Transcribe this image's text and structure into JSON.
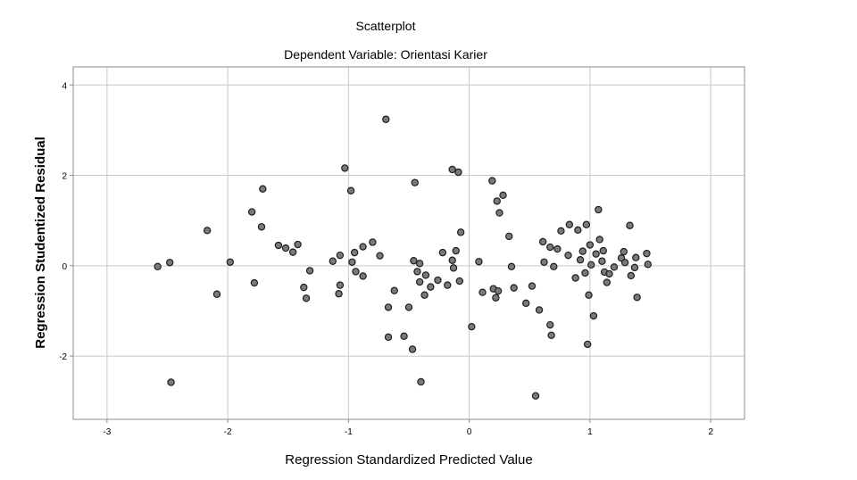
{
  "chart_data": {
    "type": "scatter",
    "title": "Scatterplot",
    "subtitle": "Dependent Variable: Orientasi Karier",
    "xlabel": "Regression Standardized Predicted Value",
    "ylabel": "Regression Studentized Residual",
    "xlim": [
      -3.28,
      2.28
    ],
    "ylim": [
      -3.4,
      4.4
    ],
    "xticks": [
      -3,
      -2,
      -1,
      0,
      1,
      2
    ],
    "yticks": [
      -2,
      0,
      2,
      4
    ],
    "grid": true,
    "point_color": "#7a7a7a",
    "points": [
      [
        -2.58,
        -0.02
      ],
      [
        -2.48,
        0.07
      ],
      [
        -2.47,
        -2.58
      ],
      [
        -2.17,
        0.78
      ],
      [
        -2.09,
        -0.63
      ],
      [
        -1.98,
        0.08
      ],
      [
        -1.8,
        1.19
      ],
      [
        -1.78,
        -0.38
      ],
      [
        -1.72,
        0.86
      ],
      [
        -1.71,
        1.7
      ],
      [
        -1.58,
        0.45
      ],
      [
        -1.52,
        0.39
      ],
      [
        -1.46,
        0.3
      ],
      [
        -1.42,
        0.47
      ],
      [
        -1.37,
        -0.48
      ],
      [
        -1.35,
        -0.72
      ],
      [
        -1.32,
        -0.11
      ],
      [
        -1.13,
        0.1
      ],
      [
        -1.08,
        -0.62
      ],
      [
        -1.07,
        0.23
      ],
      [
        -1.07,
        -0.43
      ],
      [
        -1.03,
        2.16
      ],
      [
        -0.98,
        1.66
      ],
      [
        -0.97,
        0.08
      ],
      [
        -0.95,
        0.29
      ],
      [
        -0.94,
        -0.13
      ],
      [
        -0.88,
        0.42
      ],
      [
        -0.88,
        -0.23
      ],
      [
        -0.8,
        0.52
      ],
      [
        -0.74,
        0.22
      ],
      [
        -0.69,
        3.24
      ],
      [
        -0.67,
        -0.92
      ],
      [
        -0.67,
        -1.58
      ],
      [
        -0.62,
        -0.55
      ],
      [
        -0.54,
        -1.56
      ],
      [
        -0.5,
        -0.92
      ],
      [
        -0.47,
        -1.85
      ],
      [
        -0.46,
        0.11
      ],
      [
        -0.45,
        1.84
      ],
      [
        -0.43,
        -0.13
      ],
      [
        -0.41,
        0.05
      ],
      [
        -0.41,
        -0.36
      ],
      [
        -0.4,
        -2.57
      ],
      [
        -0.37,
        -0.65
      ],
      [
        -0.36,
        -0.21
      ],
      [
        -0.32,
        -0.47
      ],
      [
        -0.26,
        -0.32
      ],
      [
        -0.22,
        0.29
      ],
      [
        -0.18,
        -0.43
      ],
      [
        -0.14,
        0.12
      ],
      [
        -0.14,
        2.13
      ],
      [
        -0.13,
        -0.05
      ],
      [
        -0.11,
        0.33
      ],
      [
        -0.09,
        2.07
      ],
      [
        -0.08,
        -0.34
      ],
      [
        -0.07,
        0.74
      ],
      [
        0.02,
        -1.35
      ],
      [
        0.08,
        0.09
      ],
      [
        0.11,
        -0.59
      ],
      [
        0.19,
        1.88
      ],
      [
        0.2,
        -0.51
      ],
      [
        0.22,
        -0.71
      ],
      [
        0.23,
        1.43
      ],
      [
        0.24,
        -0.56
      ],
      [
        0.25,
        1.17
      ],
      [
        0.28,
        1.56
      ],
      [
        0.33,
        0.65
      ],
      [
        0.35,
        -0.02
      ],
      [
        0.37,
        -0.49
      ],
      [
        0.47,
        -0.83
      ],
      [
        0.52,
        -0.45
      ],
      [
        0.55,
        -2.88
      ],
      [
        0.58,
        -0.98
      ],
      [
        0.61,
        0.53
      ],
      [
        0.62,
        0.08
      ],
      [
        0.67,
        -1.31
      ],
      [
        0.67,
        0.41
      ],
      [
        0.68,
        -1.54
      ],
      [
        0.7,
        -0.02
      ],
      [
        0.73,
        0.37
      ],
      [
        0.76,
        0.77
      ],
      [
        0.82,
        0.23
      ],
      [
        0.83,
        0.91
      ],
      [
        0.88,
        -0.27
      ],
      [
        0.9,
        0.79
      ],
      [
        0.92,
        0.13
      ],
      [
        0.94,
        0.32
      ],
      [
        0.96,
        -0.16
      ],
      [
        0.97,
        0.91
      ],
      [
        0.98,
        -1.74
      ],
      [
        0.99,
        -0.65
      ],
      [
        1.0,
        0.46
      ],
      [
        1.01,
        0.02
      ],
      [
        1.03,
        -1.11
      ],
      [
        1.05,
        0.26
      ],
      [
        1.07,
        1.24
      ],
      [
        1.08,
        0.58
      ],
      [
        1.1,
        0.1
      ],
      [
        1.11,
        0.33
      ],
      [
        1.12,
        -0.14
      ],
      [
        1.14,
        -0.37
      ],
      [
        1.16,
        -0.18
      ],
      [
        1.2,
        -0.03
      ],
      [
        1.26,
        0.17
      ],
      [
        1.28,
        0.31
      ],
      [
        1.29,
        0.07
      ],
      [
        1.33,
        0.89
      ],
      [
        1.34,
        -0.22
      ],
      [
        1.37,
        -0.04
      ],
      [
        1.38,
        0.18
      ],
      [
        1.39,
        -0.7
      ],
      [
        1.47,
        0.27
      ],
      [
        1.48,
        0.03
      ]
    ]
  }
}
